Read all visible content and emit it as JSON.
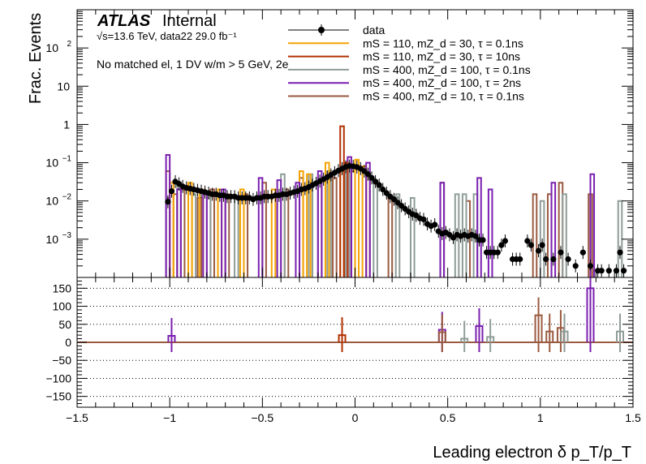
{
  "chart_data": {
    "type": "histogram",
    "panels": [
      "main-log",
      "ratio"
    ],
    "title": {
      "experiment": "ATLAS",
      "status": "Internal"
    },
    "subtitle": "√s=13.6 TeV, data22 29.0 fb⁻¹",
    "selection": "No matched el, 1 DV w/m > 5 GeV, 2e",
    "xlabel": "Leading electron δ p_T/p_T",
    "ylabel": "Frac. Events",
    "xlim": [
      -1.5,
      1.5
    ],
    "x_ticks": [
      -1.5,
      -1,
      -0.5,
      0,
      0.5,
      1,
      1.5
    ],
    "x_tick_labels": [
      "−1.5",
      "−1",
      "−0.5",
      "0",
      "0.5",
      "1",
      "1.5"
    ],
    "y_scale": "log",
    "ylim": [
      0.0001,
      1000
    ],
    "y_ticks_main": [
      {
        "v": 0.001,
        "base": "10",
        "exp": "−3"
      },
      {
        "v": 0.01,
        "base": "10",
        "exp": "−2"
      },
      {
        "v": 0.1,
        "base": "10",
        "exp": "−1"
      },
      {
        "v": 1,
        "base": "1",
        "exp": ""
      },
      {
        "v": 10,
        "base": "10",
        "exp": ""
      },
      {
        "v": 100,
        "base": "10",
        "exp": "2"
      }
    ],
    "ratio_ylim": [
      -180,
      180
    ],
    "ratio_ticks": [
      -150,
      -100,
      -50,
      0,
      50,
      100,
      150
    ],
    "ratio_tick_labels": [
      "−150",
      "−100",
      "−50",
      "0",
      "50",
      "100",
      "150"
    ],
    "ratio_grid": true,
    "legend_position": "top-right",
    "legend": [
      {
        "text": "data",
        "color": "#000000",
        "style": "marker"
      },
      {
        "text": "mS = 110, mZ_d = 30, τ = 0.1ns",
        "color": "#f5a300",
        "style": "line"
      },
      {
        "text": "mS = 110, mZ_d = 30, τ = 10ns",
        "color": "#b33000",
        "style": "line"
      },
      {
        "text": "mS = 400, mZ_d = 100, τ = 0.1ns",
        "color": "#8e9c98",
        "style": "line"
      },
      {
        "text": "mS = 400, mZ_d = 100, τ = 2ns",
        "color": "#7a1fb0",
        "style": "line"
      },
      {
        "text": "mS = 400, mZ_d = 10, τ = 0.1ns",
        "color": "#9a5a40",
        "style": "line"
      }
    ],
    "data_points": [
      {
        "x": -1.01,
        "y": 0.0095
      },
      {
        "x": -0.99,
        "y": 0.018
      },
      {
        "x": -0.97,
        "y": 0.032
      },
      {
        "x": -0.95,
        "y": 0.028
      },
      {
        "x": -0.93,
        "y": 0.024
      },
      {
        "x": -0.91,
        "y": 0.022
      },
      {
        "x": -0.89,
        "y": 0.021
      },
      {
        "x": -0.87,
        "y": 0.02
      },
      {
        "x": -0.85,
        "y": 0.019
      },
      {
        "x": -0.83,
        "y": 0.018
      },
      {
        "x": -0.81,
        "y": 0.017
      },
      {
        "x": -0.79,
        "y": 0.016
      },
      {
        "x": -0.77,
        "y": 0.015
      },
      {
        "x": -0.75,
        "y": 0.015
      },
      {
        "x": -0.73,
        "y": 0.014
      },
      {
        "x": -0.71,
        "y": 0.014
      },
      {
        "x": -0.69,
        "y": 0.013
      },
      {
        "x": -0.67,
        "y": 0.013
      },
      {
        "x": -0.65,
        "y": 0.013
      },
      {
        "x": -0.63,
        "y": 0.012
      },
      {
        "x": -0.61,
        "y": 0.012
      },
      {
        "x": -0.59,
        "y": 0.012
      },
      {
        "x": -0.57,
        "y": 0.012
      },
      {
        "x": -0.55,
        "y": 0.011
      },
      {
        "x": -0.53,
        "y": 0.012
      },
      {
        "x": -0.51,
        "y": 0.012
      },
      {
        "x": -0.49,
        "y": 0.013
      },
      {
        "x": -0.47,
        "y": 0.013
      },
      {
        "x": -0.45,
        "y": 0.013
      },
      {
        "x": -0.43,
        "y": 0.014
      },
      {
        "x": -0.41,
        "y": 0.014
      },
      {
        "x": -0.39,
        "y": 0.015
      },
      {
        "x": -0.37,
        "y": 0.015
      },
      {
        "x": -0.35,
        "y": 0.016
      },
      {
        "x": -0.33,
        "y": 0.017
      },
      {
        "x": -0.31,
        "y": 0.018
      },
      {
        "x": -0.29,
        "y": 0.02
      },
      {
        "x": -0.27,
        "y": 0.021
      },
      {
        "x": -0.25,
        "y": 0.023
      },
      {
        "x": -0.23,
        "y": 0.026
      },
      {
        "x": -0.21,
        "y": 0.029
      },
      {
        "x": -0.19,
        "y": 0.033
      },
      {
        "x": -0.17,
        "y": 0.037
      },
      {
        "x": -0.15,
        "y": 0.042
      },
      {
        "x": -0.13,
        "y": 0.048
      },
      {
        "x": -0.11,
        "y": 0.055
      },
      {
        "x": -0.09,
        "y": 0.062
      },
      {
        "x": -0.07,
        "y": 0.07
      },
      {
        "x": -0.05,
        "y": 0.078
      },
      {
        "x": -0.03,
        "y": 0.082
      },
      {
        "x": -0.01,
        "y": 0.08
      },
      {
        "x": 0.01,
        "y": 0.077
      },
      {
        "x": 0.03,
        "y": 0.07
      },
      {
        "x": 0.05,
        "y": 0.06
      },
      {
        "x": 0.07,
        "y": 0.05
      },
      {
        "x": 0.09,
        "y": 0.04
      },
      {
        "x": 0.11,
        "y": 0.032
      },
      {
        "x": 0.13,
        "y": 0.026
      },
      {
        "x": 0.15,
        "y": 0.02
      },
      {
        "x": 0.17,
        "y": 0.016
      },
      {
        "x": 0.19,
        "y": 0.013
      },
      {
        "x": 0.21,
        "y": 0.011
      },
      {
        "x": 0.23,
        "y": 0.009
      },
      {
        "x": 0.25,
        "y": 0.0075
      },
      {
        "x": 0.27,
        "y": 0.0062
      },
      {
        "x": 0.29,
        "y": 0.0052
      },
      {
        "x": 0.31,
        "y": 0.0045
      },
      {
        "x": 0.33,
        "y": 0.0042
      },
      {
        "x": 0.35,
        "y": 0.0035
      },
      {
        "x": 0.37,
        "y": 0.0033
      },
      {
        "x": 0.39,
        "y": 0.0025
      },
      {
        "x": 0.41,
        "y": 0.0022
      },
      {
        "x": 0.43,
        "y": 0.0024
      },
      {
        "x": 0.45,
        "y": 0.0016
      },
      {
        "x": 0.47,
        "y": 0.0014
      },
      {
        "x": 0.49,
        "y": 0.0015
      },
      {
        "x": 0.51,
        "y": 0.0013
      },
      {
        "x": 0.53,
        "y": 0.0011
      },
      {
        "x": 0.55,
        "y": 0.0013
      },
      {
        "x": 0.57,
        "y": 0.0012
      },
      {
        "x": 0.59,
        "y": 0.0013
      },
      {
        "x": 0.61,
        "y": 0.0012
      },
      {
        "x": 0.63,
        "y": 0.0013
      },
      {
        "x": 0.65,
        "y": 0.0012
      },
      {
        "x": 0.67,
        "y": 0.00095
      },
      {
        "x": 0.69,
        "y": 0.00095
      },
      {
        "x": 0.71,
        "y": 0.00045
      },
      {
        "x": 0.73,
        "y": 0.00045
      },
      {
        "x": 0.75,
        "y": 0.00045
      },
      {
        "x": 0.77,
        "y": 0.00045
      },
      {
        "x": 0.79,
        "y": 0.0007
      },
      {
        "x": 0.81,
        "y": 0.0009
      },
      {
        "x": 0.85,
        "y": 0.0003
      },
      {
        "x": 0.87,
        "y": 0.0003
      },
      {
        "x": 0.89,
        "y": 0.0003
      },
      {
        "x": 0.93,
        "y": 0.0009
      },
      {
        "x": 0.95,
        "y": 0.0007
      },
      {
        "x": 0.99,
        "y": 0.0005
      },
      {
        "x": 1.01,
        "y": 0.0007
      },
      {
        "x": 1.03,
        "y": 0.0003
      },
      {
        "x": 1.07,
        "y": 0.0003
      },
      {
        "x": 1.11,
        "y": 0.00045
      },
      {
        "x": 1.15,
        "y": 0.0003
      },
      {
        "x": 1.19,
        "y": 0.0002
      },
      {
        "x": 1.23,
        "y": 0.00045
      },
      {
        "x": 1.27,
        "y": 0.0002
      },
      {
        "x": 1.31,
        "y": 0.00015
      },
      {
        "x": 1.33,
        "y": 0.00015
      },
      {
        "x": 1.37,
        "y": 0.00015
      },
      {
        "x": 1.41,
        "y": 0.00015
      },
      {
        "x": 1.43,
        "y": 0.00045
      },
      {
        "x": 1.45,
        "y": 0.00015
      }
    ],
    "series_bins": [
      {
        "name": "mS = 400, mZ_d = 10, τ = 0.1ns",
        "color": "#9a5a40",
        "bins": [
          [
            -1.02,
            -1.0,
            0.06
          ],
          [
            -0.98,
            -0.96,
            0.015
          ],
          [
            -0.94,
            -0.92,
            0.02
          ],
          [
            -0.9,
            -0.88,
            0.02
          ],
          [
            -0.85,
            -0.83,
            0.012
          ],
          [
            -0.78,
            -0.76,
            0.02
          ],
          [
            -0.7,
            -0.68,
            0.015
          ],
          [
            -0.6,
            -0.58,
            0.015
          ],
          [
            -0.5,
            -0.48,
            0.03
          ],
          [
            -0.38,
            -0.36,
            0.02
          ],
          [
            -0.3,
            -0.28,
            0.04
          ],
          [
            -0.2,
            -0.18,
            0.03
          ],
          [
            -0.12,
            -0.1,
            0.04
          ],
          [
            -0.02,
            0.0,
            0.06
          ],
          [
            0.06,
            0.08,
            0.05
          ],
          [
            0.18,
            0.2,
            0.012
          ],
          [
            0.46,
            0.48,
            0.03
          ],
          [
            0.6,
            0.62,
            0.01
          ],
          [
            0.96,
            0.98,
            0.015
          ],
          [
            1.04,
            1.06,
            0.015
          ],
          [
            1.1,
            1.12,
            0.03
          ],
          [
            1.26,
            1.28,
            0.015
          ]
        ]
      },
      {
        "name": "mS = 400, mZ_d = 100, τ = 0.1ns",
        "color": "#8e9c98",
        "bins": [
          [
            -1.02,
            -1.0,
            0.012
          ],
          [
            -0.96,
            -0.94,
            0.03
          ],
          [
            -0.88,
            -0.86,
            0.015
          ],
          [
            -0.8,
            -0.78,
            0.012
          ],
          [
            -0.65,
            -0.63,
            0.012
          ],
          [
            -0.4,
            -0.38,
            0.05
          ],
          [
            -0.25,
            -0.23,
            0.05
          ],
          [
            -0.15,
            -0.13,
            0.06
          ],
          [
            -0.05,
            -0.03,
            0.1
          ],
          [
            0.1,
            0.12,
            0.03
          ],
          [
            0.22,
            0.24,
            0.015
          ],
          [
            0.3,
            0.32,
            0.012
          ],
          [
            0.54,
            0.56,
            0.015
          ],
          [
            0.58,
            0.6,
            0.015
          ],
          [
            0.64,
            0.66,
            0.015
          ],
          [
            1.0,
            1.02,
            0.01
          ],
          [
            1.12,
            1.14,
            0.015
          ],
          [
            1.42,
            1.44,
            0.01
          ]
        ]
      },
      {
        "name": "mS = 110, mZ_d = 30, τ = 0.1ns",
        "color": "#f5a300",
        "bins": [
          [
            -1.0,
            -0.98,
            0.03
          ],
          [
            -0.9,
            -0.88,
            0.03
          ],
          [
            -0.84,
            -0.82,
            0.02
          ],
          [
            -0.74,
            -0.72,
            0.02
          ],
          [
            -0.62,
            -0.6,
            0.02
          ],
          [
            -0.45,
            -0.43,
            0.02
          ],
          [
            -0.3,
            -0.28,
            0.06
          ],
          [
            -0.26,
            -0.24,
            0.05
          ],
          [
            -0.16,
            -0.14,
            0.1
          ],
          [
            -0.08,
            -0.06,
            0.06
          ],
          [
            0.0,
            0.02,
            0.12
          ],
          [
            0.04,
            0.06,
            0.08
          ]
        ]
      },
      {
        "name": "mS = 400, mZ_d = 100, τ = 2ns",
        "color": "#7a1fb0",
        "bins": [
          [
            -1.02,
            -1.0,
            0.16
          ],
          [
            -0.96,
            -0.94,
            0.02
          ],
          [
            -0.82,
            -0.8,
            0.015
          ],
          [
            -0.72,
            -0.7,
            0.02
          ],
          [
            -0.52,
            -0.5,
            0.04
          ],
          [
            -0.42,
            -0.4,
            0.035
          ],
          [
            -0.32,
            -0.3,
            0.03
          ],
          [
            -0.2,
            -0.18,
            0.06
          ],
          [
            -0.04,
            -0.02,
            0.14
          ],
          [
            0.06,
            0.08,
            0.1
          ],
          [
            0.46,
            0.48,
            0.03
          ],
          [
            0.66,
            0.68,
            0.04
          ],
          [
            0.72,
            0.74,
            0.02
          ],
          [
            1.06,
            1.08,
            0.03
          ],
          [
            1.27,
            1.29,
            0.05
          ]
        ]
      },
      {
        "name": "mS = 110, mZ_d = 30, τ = 10ns",
        "color": "#b33000",
        "bins": [
          [
            -0.08,
            -0.06,
            0.9
          ],
          [
            -0.06,
            -0.04,
            0.1
          ]
        ]
      }
    ],
    "ratio_spikes": [
      {
        "x": -0.99,
        "v": 18,
        "color": "#7a1fb0"
      },
      {
        "x": -0.07,
        "v": 20,
        "color": "#b33000"
      },
      {
        "x": 0.47,
        "v": 35,
        "color": "#7a1fb0"
      },
      {
        "x": 0.47,
        "v": 28,
        "color": "#9a5a40"
      },
      {
        "x": 0.59,
        "v": 10,
        "color": "#8e9c98"
      },
      {
        "x": 0.67,
        "v": 45,
        "color": "#7a1fb0"
      },
      {
        "x": 0.73,
        "v": 15,
        "color": "#8e9c98"
      },
      {
        "x": 0.99,
        "v": 75,
        "color": "#9a5a40"
      },
      {
        "x": 1.05,
        "v": 30,
        "color": "#9a5a40"
      },
      {
        "x": 1.11,
        "v": 40,
        "color": "#9a5a40"
      },
      {
        "x": 1.13,
        "v": 30,
        "color": "#8e9c98"
      },
      {
        "x": 1.27,
        "v": 150,
        "color": "#7a1fb0"
      },
      {
        "x": 1.43,
        "v": 30,
        "color": "#8e9c98"
      }
    ]
  }
}
